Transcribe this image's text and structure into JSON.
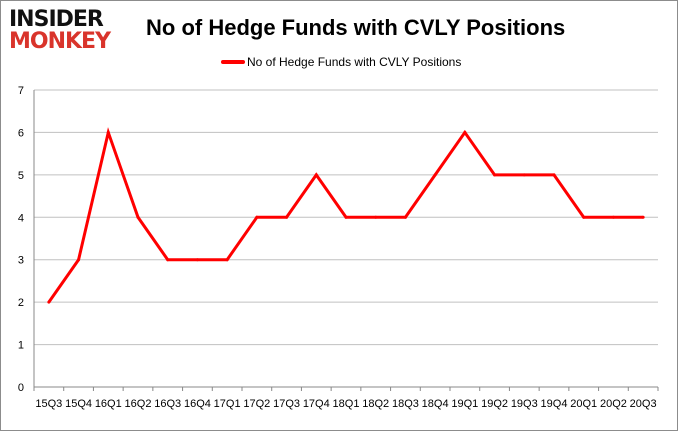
{
  "logo": {
    "line1": "INSIDER",
    "line2": "MONKEY"
  },
  "colors": {
    "series": "#ff0000",
    "grid": "#c0c0c0",
    "logo_red": "#d9342b"
  },
  "chart_data": {
    "type": "line",
    "title": "No of Hedge Funds with CVLY Positions",
    "xlabel": "",
    "ylabel": "",
    "ylim": [
      0,
      7
    ],
    "yticks": [
      0,
      1,
      2,
      3,
      4,
      5,
      6,
      7
    ],
    "grid": true,
    "legend_position": "top",
    "categories": [
      "15Q3",
      "15Q4",
      "16Q1",
      "16Q2",
      "16Q3",
      "16Q4",
      "17Q1",
      "17Q2",
      "17Q3",
      "17Q4",
      "18Q1",
      "18Q2",
      "18Q3",
      "18Q4",
      "19Q1",
      "19Q2",
      "19Q3",
      "19Q4",
      "20Q1",
      "20Q2",
      "20Q3"
    ],
    "series": [
      {
        "name": "No of Hedge Funds with CVLY Positions",
        "values": [
          2,
          3,
          6,
          4,
          3,
          3,
          3,
          4,
          4,
          5,
          4,
          4,
          4,
          5,
          6,
          5,
          5,
          5,
          4,
          4,
          4
        ]
      }
    ]
  }
}
